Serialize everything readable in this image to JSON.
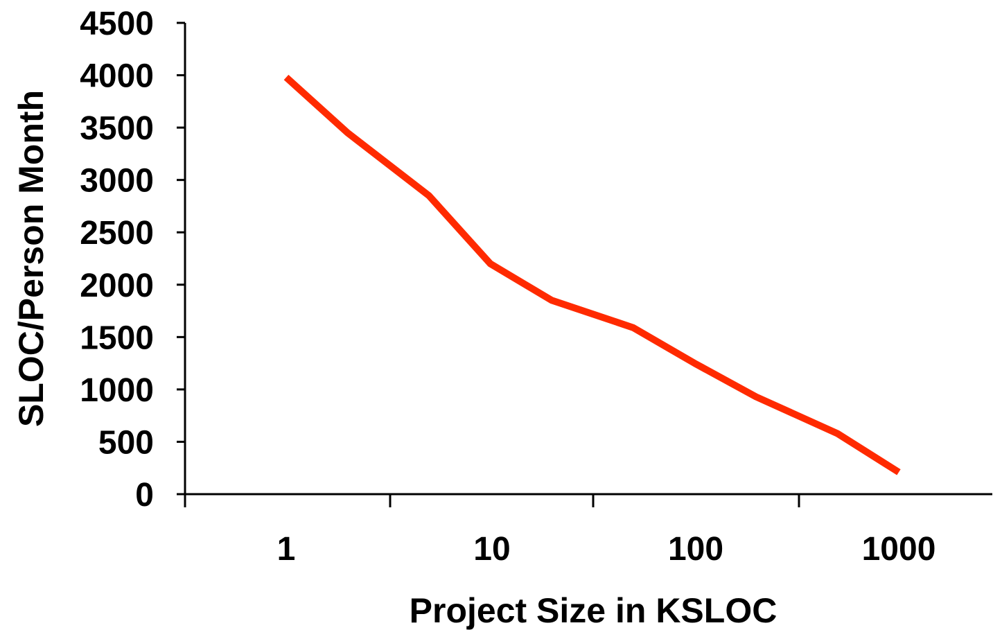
{
  "chart_data": {
    "type": "line",
    "xscale": "log",
    "xlabel": "Project Size in KSLOC",
    "ylabel": "SLOC/Person Month",
    "xlim": [
      0.3,
      4000
    ],
    "ylim": [
      0,
      4500
    ],
    "x_ticks": [
      1,
      10,
      100,
      1000
    ],
    "x_tick_labels": [
      "1",
      "10",
      "100",
      "1000"
    ],
    "y_ticks": [
      0,
      500,
      1000,
      1500,
      2000,
      2500,
      3000,
      3500,
      4000,
      4500
    ],
    "y_tick_labels": [
      "0",
      "500",
      "1000",
      "1500",
      "2000",
      "2500",
      "3000",
      "3500",
      "4000",
      "4500"
    ],
    "grid": false,
    "legend": "none",
    "series": [
      {
        "color": "#ff2a00",
        "x": [
          1,
          2,
          5,
          10,
          20,
          50,
          100,
          200,
          500,
          1000
        ],
        "y": [
          3980,
          3450,
          2850,
          2200,
          1850,
          1590,
          1250,
          930,
          580,
          210
        ]
      }
    ]
  }
}
